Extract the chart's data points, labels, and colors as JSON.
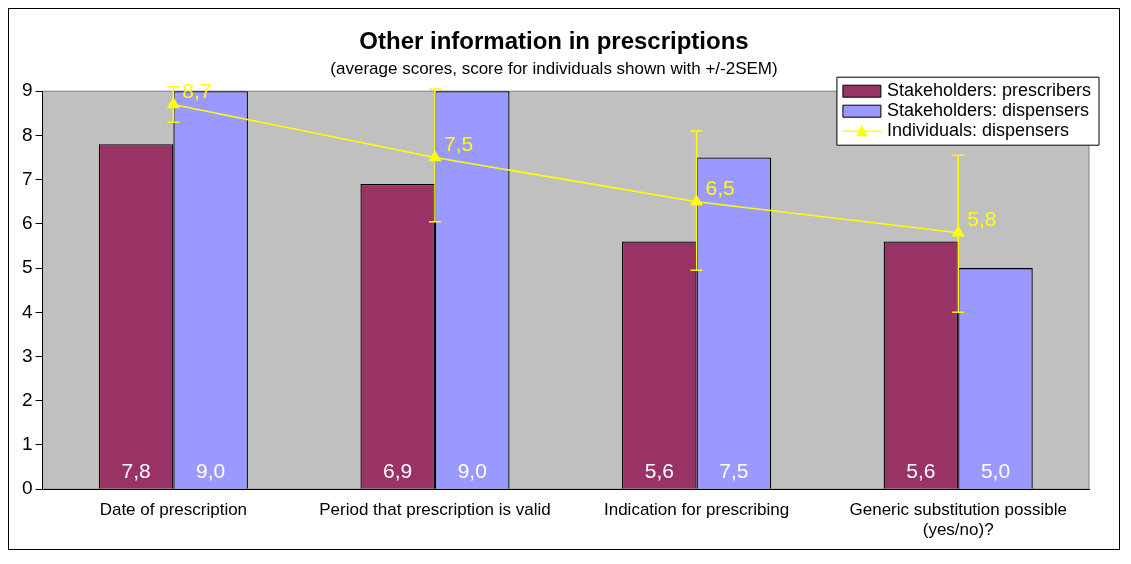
{
  "chart_data": {
    "type": "bar",
    "title": "Other information in prescriptions",
    "subtitle": "(average scores, score for individuals shown with +/-2SEM)",
    "categories": [
      "Date of prescription",
      "Period that prescription is valid",
      "Indication for prescribing",
      "Generic substitution possible (yes/no)?"
    ],
    "series": [
      {
        "name": "Stakeholders: prescribers",
        "color": "#993366",
        "values": [
          7.8,
          6.9,
          5.6,
          5.6
        ],
        "value_labels": [
          "7,8",
          "6,9",
          "5,6",
          "5,6"
        ]
      },
      {
        "name": "Stakeholders: dispensers",
        "color": "#9999ff",
        "values": [
          9.0,
          9.0,
          7.5,
          5.0
        ],
        "value_labels": [
          "9,0",
          "9,0",
          "7,5",
          "5,0"
        ]
      },
      {
        "name": "Individuals: dispensers",
        "type": "line",
        "color": "#ffff00",
        "values": [
          8.7,
          7.5,
          6.5,
          5.8
        ],
        "value_labels": [
          "8,7",
          "7,5",
          "6,5",
          "5,8"
        ],
        "errors": [
          [
            8.3,
            9.1
          ],
          [
            6.05,
            9.05
          ],
          [
            4.95,
            8.1
          ],
          [
            4.0,
            7.55
          ]
        ],
        "marker": "triangle"
      }
    ],
    "ylim": [
      0,
      9
    ],
    "yticks": [
      0,
      1,
      2,
      3,
      4,
      5,
      6,
      7,
      8,
      9
    ],
    "grid": false,
    "legend": "top right"
  }
}
